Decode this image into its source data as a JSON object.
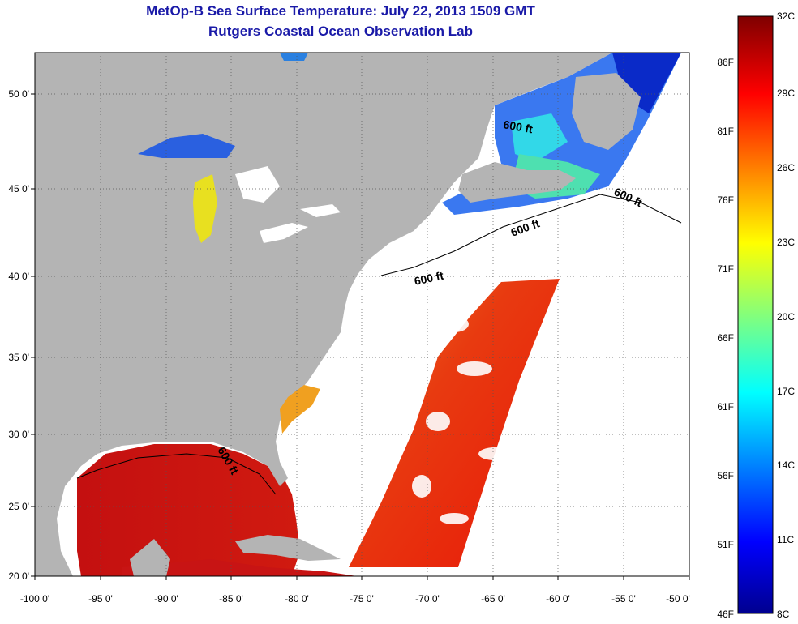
{
  "header": {
    "title": "MetOp-B Sea Surface Temperature:  July 22, 2013 1509 GMT",
    "subtitle": "Rutgers Coastal Ocean Observation Lab"
  },
  "map": {
    "lon_range": [
      -100,
      -50
    ],
    "lat_range": [
      20,
      52
    ],
    "x_ticks": [
      "-100 0'",
      "-95 0'",
      "-90 0'",
      "-85 0'",
      "-80 0'",
      "-75 0'",
      "-70 0'",
      "-65 0'",
      "-60 0'",
      "-55 0'",
      "-50 0'"
    ],
    "y_ticks": [
      "20 0'",
      "25 0'",
      "30 0'",
      "35 0'",
      "40 0'",
      "45 0'",
      "50 0'"
    ],
    "contour_label": "600 ft",
    "land_color": "#b4b4b4",
    "cloud_color": "#ffffff"
  },
  "colorbar": {
    "celsius_labels": [
      "32C",
      "29C",
      "26C",
      "23C",
      "20C",
      "17C",
      "14C",
      "11C",
      "8C"
    ],
    "fahrenheit_labels": [
      "86F",
      "81F",
      "76F",
      "71F",
      "66F",
      "61F",
      "56F",
      "51F",
      "46F"
    ],
    "colors": [
      "#7f0000",
      "#ff0000",
      "#ff8000",
      "#ffff00",
      "#80ff80",
      "#00ffff",
      "#0080ff",
      "#0000ff",
      "#00008f"
    ]
  }
}
